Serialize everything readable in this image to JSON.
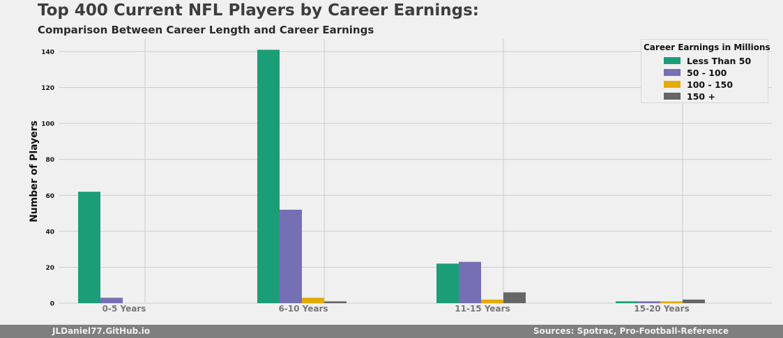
{
  "chart_data": {
    "type": "bar",
    "title": "Top 400 Current NFL Players by Career Earnings:",
    "subtitle": "Comparison Between Career Length and Career Earnings",
    "xlabel": "",
    "ylabel": "Number of Players",
    "categories": [
      "0-5 Years",
      "6-10 Years",
      "11-15 Years",
      "15-20 Years"
    ],
    "yticks": [
      0,
      20,
      40,
      60,
      80,
      100,
      120,
      140
    ],
    "ylim": [
      0,
      147
    ],
    "grid": true,
    "legend": {
      "title": "Career Earnings in Millions",
      "placement": "top-right"
    },
    "series": [
      {
        "name": "Less Than 50",
        "color": "#1b9e77",
        "values": [
          62,
          141,
          22,
          1
        ]
      },
      {
        "name": "50 - 100",
        "color": "#7570b3",
        "values": [
          3,
          52,
          23,
          1
        ]
      },
      {
        "name": "100 - 150",
        "color": "#e6ab02",
        "values": [
          0,
          3,
          2,
          1
        ]
      },
      {
        "name": "150 +",
        "color": "#666666",
        "values": [
          0,
          1,
          6,
          2
        ]
      }
    ]
  },
  "footer": {
    "left": "JLDaniel77.GitHub.io",
    "right": "Sources: Spotrac, Pro-Football-Reference"
  }
}
